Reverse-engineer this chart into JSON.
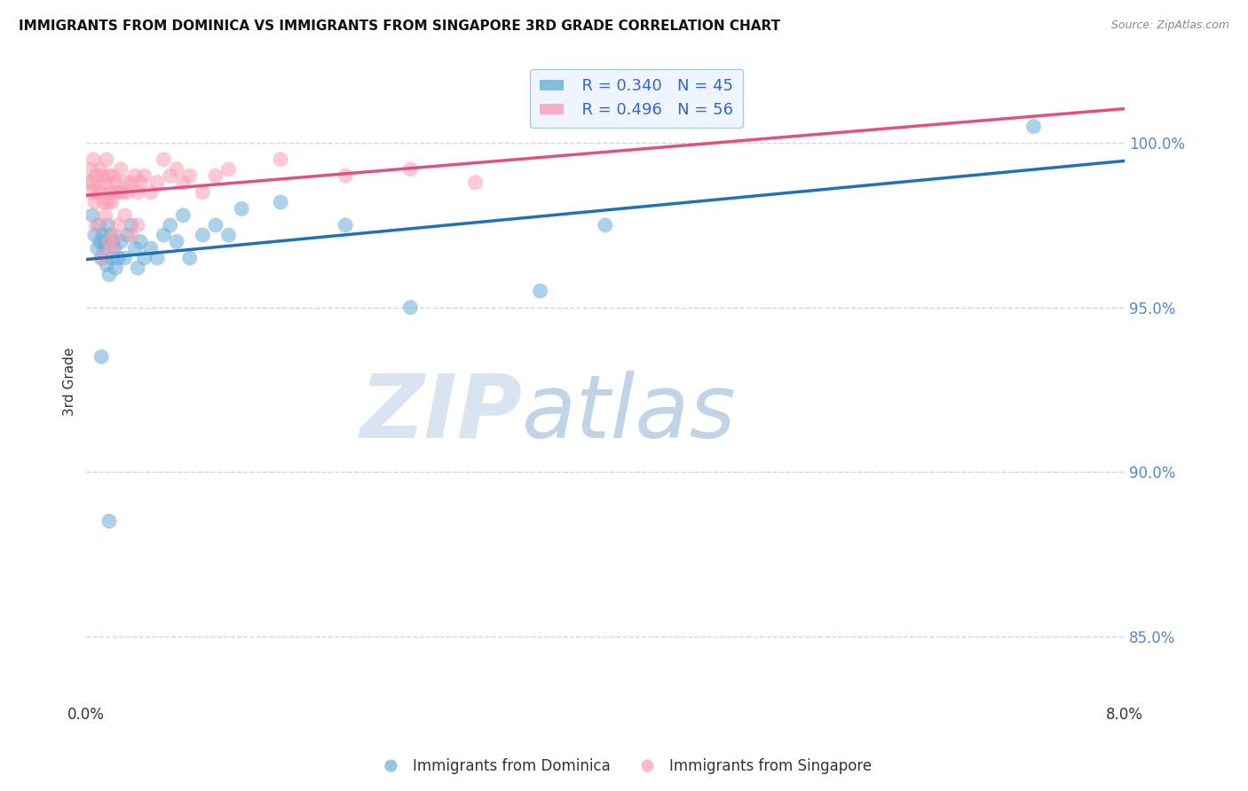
{
  "title": "IMMIGRANTS FROM DOMINICA VS IMMIGRANTS FROM SINGAPORE 3RD GRADE CORRELATION CHART",
  "source_text": "Source: ZipAtlas.com",
  "ylabel": "3rd Grade",
  "xlabel": "",
  "legend_labels": [
    "Immigrants from Dominica",
    "Immigrants from Singapore"
  ],
  "blue_color": "#6baed6",
  "pink_color": "#fa9fb5",
  "blue_line_color": "#2171b5",
  "pink_line_color": "#e05080",
  "R_blue": 0.34,
  "N_blue": 45,
  "R_pink": 0.496,
  "N_pink": 56,
  "xlim": [
    0.0,
    8.0
  ],
  "ylim": [
    83.0,
    102.5
  ],
  "ytick_values": [
    85.0,
    90.0,
    95.0,
    100.0
  ],
  "xtick_values": [
    0.0,
    1.0,
    2.0,
    3.0,
    4.0,
    5.0,
    6.0,
    7.0,
    8.0
  ],
  "blue_x": [
    0.05,
    0.07,
    0.09,
    0.1,
    0.11,
    0.12,
    0.13,
    0.14,
    0.15,
    0.16,
    0.17,
    0.18,
    0.19,
    0.2,
    0.21,
    0.22,
    0.23,
    0.25,
    0.27,
    0.3,
    0.32,
    0.35,
    0.38,
    0.4,
    0.42,
    0.45,
    0.5,
    0.55,
    0.6,
    0.65,
    0.7,
    0.75,
    0.8,
    0.9,
    1.0,
    1.1,
    1.2,
    1.5,
    2.0,
    2.5,
    3.5,
    4.0,
    7.3,
    0.12,
    0.18
  ],
  "blue_y": [
    97.8,
    97.2,
    96.8,
    97.5,
    97.0,
    96.5,
    97.2,
    96.8,
    97.0,
    96.3,
    97.5,
    96.0,
    97.2,
    96.5,
    97.0,
    96.8,
    96.2,
    96.5,
    97.0,
    96.5,
    97.2,
    97.5,
    96.8,
    96.2,
    97.0,
    96.5,
    96.8,
    96.5,
    97.2,
    97.5,
    97.0,
    97.8,
    96.5,
    97.2,
    97.5,
    97.2,
    98.0,
    98.2,
    97.5,
    95.0,
    95.5,
    97.5,
    100.5,
    93.5,
    88.5
  ],
  "pink_x": [
    0.02,
    0.03,
    0.04,
    0.05,
    0.06,
    0.07,
    0.08,
    0.09,
    0.1,
    0.11,
    0.12,
    0.13,
    0.14,
    0.15,
    0.16,
    0.17,
    0.18,
    0.19,
    0.2,
    0.21,
    0.22,
    0.23,
    0.25,
    0.27,
    0.28,
    0.3,
    0.32,
    0.35,
    0.38,
    0.4,
    0.42,
    0.45,
    0.5,
    0.55,
    0.6,
    0.65,
    0.7,
    0.75,
    0.8,
    0.9,
    1.0,
    1.1,
    1.5,
    2.0,
    2.5,
    3.0,
    0.08,
    0.12,
    0.15,
    0.18,
    0.2,
    0.22,
    0.25,
    0.3,
    0.35,
    0.4
  ],
  "pink_y": [
    98.8,
    99.2,
    98.5,
    98.8,
    99.5,
    98.2,
    99.0,
    98.5,
    98.8,
    99.2,
    98.5,
    99.0,
    98.2,
    98.8,
    99.5,
    98.2,
    99.0,
    98.5,
    98.2,
    99.0,
    98.5,
    98.8,
    98.5,
    99.2,
    98.5,
    98.8,
    98.5,
    98.8,
    99.0,
    98.5,
    98.8,
    99.0,
    98.5,
    98.8,
    99.5,
    99.0,
    99.2,
    98.8,
    99.0,
    98.5,
    99.0,
    99.2,
    99.5,
    99.0,
    99.2,
    98.8,
    97.5,
    96.5,
    97.8,
    97.0,
    96.8,
    97.2,
    97.5,
    97.8,
    97.2,
    97.5
  ],
  "watermark_zip": "ZIP",
  "watermark_atlas": "atlas",
  "background_color": "#ffffff",
  "grid_color": "#c8d8e8",
  "legend_box_color": "#ddeeff",
  "legend_text_color": "#3366cc",
  "right_tick_color": "#5588cc"
}
